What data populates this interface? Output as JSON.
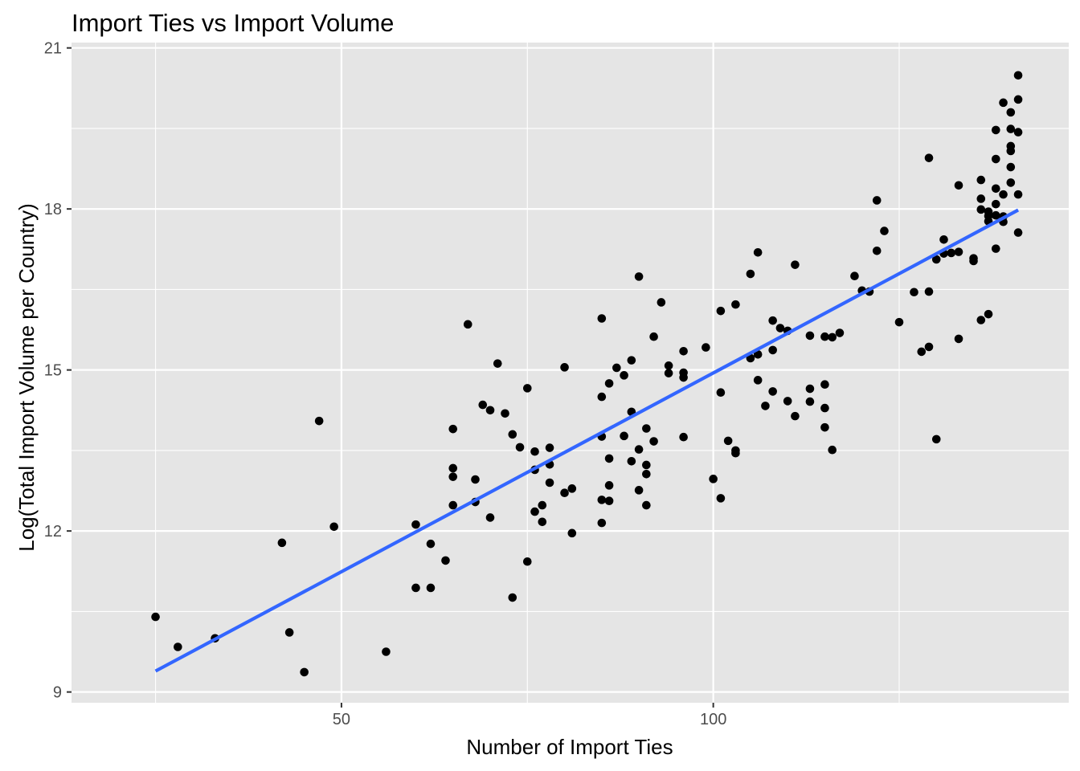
{
  "chart_data": {
    "type": "scatter",
    "title": "Import Ties vs Import Volume",
    "xlabel": "Number of Import Ties",
    "ylabel": "Log(Total Import Volume per Country)",
    "xlim": [
      13.7,
      147.8
    ],
    "ylim": [
      8.8,
      21.1
    ],
    "x_ticks": [
      50,
      100
    ],
    "x_minor_ticks": [
      25,
      75,
      125
    ],
    "y_ticks": [
      9,
      12,
      15,
      18,
      21
    ],
    "y_minor_ticks": [
      10.5,
      13.5,
      16.5,
      19.5
    ],
    "grid": true,
    "legend": "none",
    "colors": {
      "panel": "#e5e5e5",
      "grid": "#ffffff",
      "points": "#000000",
      "fit_line": "#3366ff"
    },
    "fit_line": {
      "type": "linear",
      "x": [
        25,
        141
      ],
      "y": [
        9.39,
        17.98
      ]
    },
    "points": [
      {
        "x": 25,
        "y": 10.4
      },
      {
        "x": 28,
        "y": 9.84
      },
      {
        "x": 33,
        "y": 10.0
      },
      {
        "x": 42,
        "y": 11.78
      },
      {
        "x": 43,
        "y": 10.11
      },
      {
        "x": 45,
        "y": 9.37
      },
      {
        "x": 47,
        "y": 14.05
      },
      {
        "x": 49,
        "y": 12.08
      },
      {
        "x": 56,
        "y": 9.75
      },
      {
        "x": 60,
        "y": 12.12
      },
      {
        "x": 60,
        "y": 10.94
      },
      {
        "x": 62,
        "y": 11.76
      },
      {
        "x": 62,
        "y": 10.94
      },
      {
        "x": 64,
        "y": 11.45
      },
      {
        "x": 65,
        "y": 13.9
      },
      {
        "x": 65,
        "y": 13.17
      },
      {
        "x": 65,
        "y": 13.01
      },
      {
        "x": 65,
        "y": 12.48
      },
      {
        "x": 67,
        "y": 15.85
      },
      {
        "x": 68,
        "y": 12.96
      },
      {
        "x": 68,
        "y": 12.54
      },
      {
        "x": 69,
        "y": 14.35
      },
      {
        "x": 70,
        "y": 14.25
      },
      {
        "x": 70,
        "y": 12.25
      },
      {
        "x": 71,
        "y": 15.12
      },
      {
        "x": 72,
        "y": 14.19
      },
      {
        "x": 73,
        "y": 13.8
      },
      {
        "x": 73,
        "y": 10.76
      },
      {
        "x": 74,
        "y": 13.56
      },
      {
        "x": 75,
        "y": 14.66
      },
      {
        "x": 75,
        "y": 11.43
      },
      {
        "x": 76,
        "y": 13.48
      },
      {
        "x": 76,
        "y": 13.14
      },
      {
        "x": 76,
        "y": 12.36
      },
      {
        "x": 77,
        "y": 12.48
      },
      {
        "x": 77,
        "y": 12.17
      },
      {
        "x": 78,
        "y": 13.55
      },
      {
        "x": 78,
        "y": 13.24
      },
      {
        "x": 78,
        "y": 12.9
      },
      {
        "x": 80,
        "y": 15.05
      },
      {
        "x": 80,
        "y": 12.71
      },
      {
        "x": 81,
        "y": 12.79
      },
      {
        "x": 81,
        "y": 11.96
      },
      {
        "x": 85,
        "y": 15.96
      },
      {
        "x": 85,
        "y": 14.5
      },
      {
        "x": 85,
        "y": 13.76
      },
      {
        "x": 85,
        "y": 12.58
      },
      {
        "x": 85,
        "y": 12.15
      },
      {
        "x": 86,
        "y": 14.75
      },
      {
        "x": 86,
        "y": 13.35
      },
      {
        "x": 86,
        "y": 12.85
      },
      {
        "x": 86,
        "y": 12.56
      },
      {
        "x": 87,
        "y": 15.04
      },
      {
        "x": 88,
        "y": 14.9
      },
      {
        "x": 88,
        "y": 13.77
      },
      {
        "x": 89,
        "y": 15.18
      },
      {
        "x": 89,
        "y": 14.22
      },
      {
        "x": 89,
        "y": 13.3
      },
      {
        "x": 90,
        "y": 16.74
      },
      {
        "x": 90,
        "y": 13.52
      },
      {
        "x": 90,
        "y": 12.76
      },
      {
        "x": 91,
        "y": 13.91
      },
      {
        "x": 91,
        "y": 13.23
      },
      {
        "x": 91,
        "y": 13.06
      },
      {
        "x": 91,
        "y": 12.48
      },
      {
        "x": 92,
        "y": 15.62
      },
      {
        "x": 92,
        "y": 13.67
      },
      {
        "x": 93,
        "y": 16.26
      },
      {
        "x": 94,
        "y": 15.08
      },
      {
        "x": 94,
        "y": 14.94
      },
      {
        "x": 96,
        "y": 15.35
      },
      {
        "x": 96,
        "y": 14.95
      },
      {
        "x": 96,
        "y": 14.86
      },
      {
        "x": 96,
        "y": 13.75
      },
      {
        "x": 99,
        "y": 15.42
      },
      {
        "x": 100,
        "y": 12.97
      },
      {
        "x": 101,
        "y": 16.1
      },
      {
        "x": 101,
        "y": 14.58
      },
      {
        "x": 101,
        "y": 12.61
      },
      {
        "x": 102,
        "y": 13.68
      },
      {
        "x": 103,
        "y": 16.22
      },
      {
        "x": 103,
        "y": 13.5
      },
      {
        "x": 103,
        "y": 13.45
      },
      {
        "x": 105,
        "y": 16.79
      },
      {
        "x": 105,
        "y": 15.22
      },
      {
        "x": 106,
        "y": 17.19
      },
      {
        "x": 106,
        "y": 15.29
      },
      {
        "x": 106,
        "y": 14.81
      },
      {
        "x": 107,
        "y": 14.33
      },
      {
        "x": 108,
        "y": 15.92
      },
      {
        "x": 108,
        "y": 15.37
      },
      {
        "x": 108,
        "y": 14.6
      },
      {
        "x": 109,
        "y": 15.78
      },
      {
        "x": 110,
        "y": 15.73
      },
      {
        "x": 110,
        "y": 14.42
      },
      {
        "x": 111,
        "y": 16.96
      },
      {
        "x": 111,
        "y": 14.14
      },
      {
        "x": 113,
        "y": 15.64
      },
      {
        "x": 113,
        "y": 14.65
      },
      {
        "x": 113,
        "y": 14.41
      },
      {
        "x": 115,
        "y": 15.62
      },
      {
        "x": 115,
        "y": 14.73
      },
      {
        "x": 115,
        "y": 14.29
      },
      {
        "x": 115,
        "y": 13.93
      },
      {
        "x": 116,
        "y": 15.61
      },
      {
        "x": 116,
        "y": 13.51
      },
      {
        "x": 117,
        "y": 15.69
      },
      {
        "x": 119,
        "y": 16.75
      },
      {
        "x": 120,
        "y": 16.48
      },
      {
        "x": 121,
        "y": 16.46
      },
      {
        "x": 122,
        "y": 18.16
      },
      {
        "x": 122,
        "y": 17.22
      },
      {
        "x": 123,
        "y": 17.59
      },
      {
        "x": 125,
        "y": 15.89
      },
      {
        "x": 127,
        "y": 16.45
      },
      {
        "x": 128,
        "y": 15.34
      },
      {
        "x": 129,
        "y": 18.95
      },
      {
        "x": 129,
        "y": 16.46
      },
      {
        "x": 129,
        "y": 15.43
      },
      {
        "x": 130,
        "y": 17.06
      },
      {
        "x": 130,
        "y": 13.71
      },
      {
        "x": 131,
        "y": 17.43
      },
      {
        "x": 131,
        "y": 17.17
      },
      {
        "x": 132,
        "y": 17.18
      },
      {
        "x": 133,
        "y": 18.44
      },
      {
        "x": 133,
        "y": 17.2
      },
      {
        "x": 133,
        "y": 15.58
      },
      {
        "x": 135,
        "y": 17.08
      },
      {
        "x": 135,
        "y": 17.03
      },
      {
        "x": 136,
        "y": 18.54
      },
      {
        "x": 136,
        "y": 18.19
      },
      {
        "x": 136,
        "y": 17.99
      },
      {
        "x": 136,
        "y": 15.93
      },
      {
        "x": 137,
        "y": 17.95
      },
      {
        "x": 137,
        "y": 17.87
      },
      {
        "x": 137,
        "y": 17.77
      },
      {
        "x": 137,
        "y": 16.04
      },
      {
        "x": 138,
        "y": 19.47
      },
      {
        "x": 138,
        "y": 18.93
      },
      {
        "x": 138,
        "y": 18.38
      },
      {
        "x": 138,
        "y": 18.09
      },
      {
        "x": 138,
        "y": 17.88
      },
      {
        "x": 138,
        "y": 17.26
      },
      {
        "x": 139,
        "y": 19.98
      },
      {
        "x": 139,
        "y": 18.27
      },
      {
        "x": 139,
        "y": 17.86
      },
      {
        "x": 139,
        "y": 17.76
      },
      {
        "x": 140,
        "y": 19.8
      },
      {
        "x": 140,
        "y": 19.49
      },
      {
        "x": 140,
        "y": 19.17
      },
      {
        "x": 140,
        "y": 19.08
      },
      {
        "x": 140,
        "y": 18.78
      },
      {
        "x": 140,
        "y": 18.49
      },
      {
        "x": 141,
        "y": 20.49
      },
      {
        "x": 141,
        "y": 20.04
      },
      {
        "x": 141,
        "y": 19.43
      },
      {
        "x": 141,
        "y": 18.27
      },
      {
        "x": 141,
        "y": 17.56
      }
    ]
  }
}
